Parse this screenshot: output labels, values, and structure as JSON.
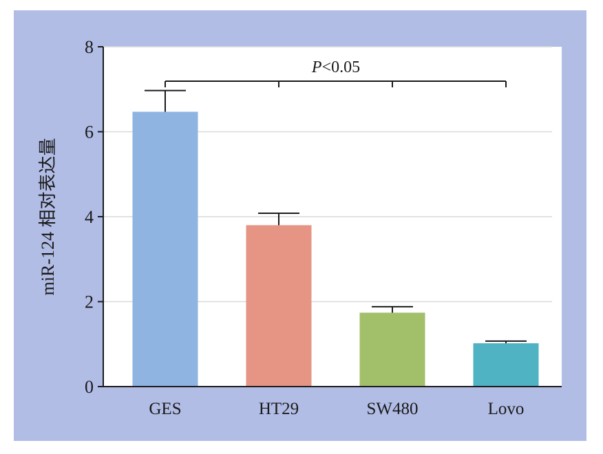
{
  "chart_data": {
    "type": "bar",
    "title": "",
    "xlabel": "",
    "ylabel": "miR-124 相对表达量",
    "categories": [
      "GES",
      "HT29",
      "SW480",
      "Lovo"
    ],
    "values": [
      6.47,
      3.8,
      1.74,
      1.02
    ],
    "errors": [
      0.5,
      0.28,
      0.14,
      0.05
    ],
    "colors": [
      "#8fb4e1",
      "#e69584",
      "#a2bf6a",
      "#4fb3c4"
    ],
    "ylim": [
      0,
      8
    ],
    "yticks": [
      "0",
      "2",
      "4",
      "6",
      "8"
    ],
    "grid": true,
    "annotation": {
      "text_italic": "P",
      "text_rest": "<0.05"
    }
  }
}
